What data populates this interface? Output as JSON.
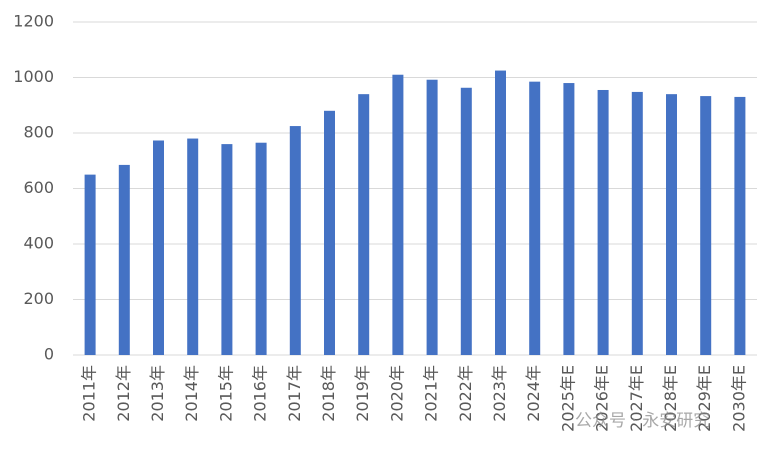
{
  "chart_data": {
    "type": "bar",
    "categories": [
      "2011年",
      "2012年",
      "2013年",
      "2014年",
      "2015年",
      "2016年",
      "2017年",
      "2018年",
      "2019年",
      "2020年",
      "2021年",
      "2022年",
      "2023年",
      "2024年",
      "2025年E",
      "2026年E",
      "2027年E",
      "2028年E",
      "2029年E",
      "2030年E"
    ],
    "values": [
      650,
      685,
      773,
      780,
      760,
      765,
      825,
      880,
      940,
      1010,
      992,
      963,
      1025,
      985,
      980,
      955,
      948,
      940,
      933,
      930
    ],
    "color": "#4472c4",
    "ylim": [
      0,
      1200
    ],
    "yticks": [
      0,
      200,
      400,
      600,
      800,
      1000,
      1200
    ],
    "grid": true,
    "watermark": "公众号 · 永安研究"
  }
}
